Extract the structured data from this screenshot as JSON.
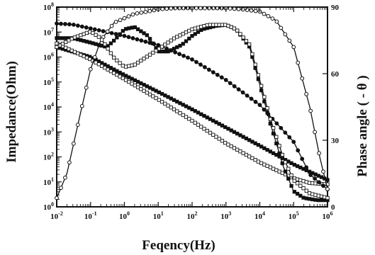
{
  "chart_data": {
    "type": "line",
    "title": "",
    "xlabel": "Feqency(Hz)",
    "ylabel": "Impedance(Ohm)",
    "y2label": "Phase angle ( - θ )",
    "x_scale": "log",
    "y_scale": "log",
    "xlim": [
      0.01,
      1000000
    ],
    "ylim": [
      1,
      100000000
    ],
    "y2lim": [
      0,
      90
    ],
    "x_ticks": [
      {
        "v": 0.01,
        "b": "10",
        "e": "-2"
      },
      {
        "v": 0.1,
        "b": "10",
        "e": "-1"
      },
      {
        "v": 1,
        "b": "10",
        "e": "0"
      },
      {
        "v": 10,
        "b": "10",
        "e": "1"
      },
      {
        "v": 100,
        "b": "10",
        "e": "2"
      },
      {
        "v": 1000,
        "b": "10",
        "e": "3"
      },
      {
        "v": 10000,
        "b": "10",
        "e": "4"
      },
      {
        "v": 100000,
        "b": "10",
        "e": "5"
      },
      {
        "v": 1000000,
        "b": "10",
        "e": "6"
      }
    ],
    "y_ticks": [
      {
        "v": 1,
        "b": "10",
        "e": "0"
      },
      {
        "v": 10,
        "b": "10",
        "e": "1"
      },
      {
        "v": 100,
        "b": "10",
        "e": "2"
      },
      {
        "v": 1000,
        "b": "10",
        "e": "3"
      },
      {
        "v": 10000,
        "b": "10",
        "e": "4"
      },
      {
        "v": 100000,
        "b": "10",
        "e": "5"
      },
      {
        "v": 1000000,
        "b": "10",
        "e": "6"
      },
      {
        "v": 10000000,
        "b": "10",
        "e": "7"
      },
      {
        "v": 100000000,
        "b": "10",
        "e": "8"
      }
    ],
    "y2_ticks": [
      0,
      30,
      60,
      90
    ],
    "grid": false,
    "legend": "none",
    "series": [
      {
        "axis": "left",
        "marker": "square",
        "color": "#111111",
        "x": [
          0.01,
          0.1,
          1,
          10,
          100,
          1000,
          10000,
          100000,
          1000000
        ],
        "y": [
          2500000,
          1000000,
          190000,
          40000,
          8000,
          1500,
          280,
          50,
          12
        ]
      },
      {
        "axis": "left",
        "marker": "open-square",
        "color": "#111111",
        "x": [
          0.01,
          0.1,
          1,
          10,
          100,
          1000,
          10000,
          100000,
          300000,
          1000000
        ],
        "y": [
          3500000,
          800000,
          130000,
          20000,
          2800,
          350,
          60,
          14,
          9,
          8
        ]
      },
      {
        "axis": "left",
        "marker": "circle",
        "color": "#111111",
        "x": [
          0.01,
          0.03,
          0.1,
          1,
          10,
          100,
          1000,
          10000,
          100000,
          300000,
          1000000
        ],
        "y": [
          22000000,
          20000000,
          14000000,
          7000000,
          3000000,
          800000,
          120000,
          12000,
          400,
          20,
          5
        ]
      },
      {
        "axis": "right",
        "marker": "open-circle",
        "color": "#111111",
        "x": [
          0.01,
          0.02,
          0.05,
          0.1,
          0.2,
          0.5,
          1,
          2,
          5,
          10,
          30,
          100,
          300,
          1000,
          3000,
          10000,
          30000,
          100000,
          300000,
          600000,
          1000000
        ],
        "y": [
          4,
          15,
          42,
          62,
          75,
          83,
          85,
          87,
          88,
          89,
          89.5,
          89.5,
          89.5,
          89.5,
          89,
          88,
          84,
          72,
          45,
          22,
          8
        ]
      },
      {
        "axis": "right",
        "marker": "square",
        "color": "#111111",
        "x": [
          0.01,
          0.03,
          0.1,
          0.3,
          0.5,
          1,
          2,
          5,
          10,
          20,
          50,
          100,
          200,
          500,
          1000,
          2000,
          5000,
          10000,
          20000,
          50000,
          100000,
          200000,
          500000,
          1000000
        ],
        "y": [
          76,
          76,
          74,
          72,
          75,
          80,
          81,
          77,
          70,
          70,
          73,
          77,
          80,
          81.5,
          82,
          80,
          72,
          55,
          38,
          18,
          7,
          4,
          3,
          3
        ]
      },
      {
        "axis": "right",
        "marker": "open-square",
        "color": "#111111",
        "x": [
          0.01,
          0.03,
          0.1,
          0.2,
          0.5,
          1,
          2,
          5,
          10,
          30,
          100,
          300,
          1000,
          2000,
          5000,
          10000,
          20000,
          50000,
          100000,
          300000,
          1000000
        ],
        "y": [
          72,
          76,
          79,
          76,
          67,
          63,
          64,
          68,
          71,
          76,
          80,
          82,
          82,
          80,
          73,
          57,
          40,
          22,
          12,
          6,
          4
        ]
      }
    ]
  }
}
